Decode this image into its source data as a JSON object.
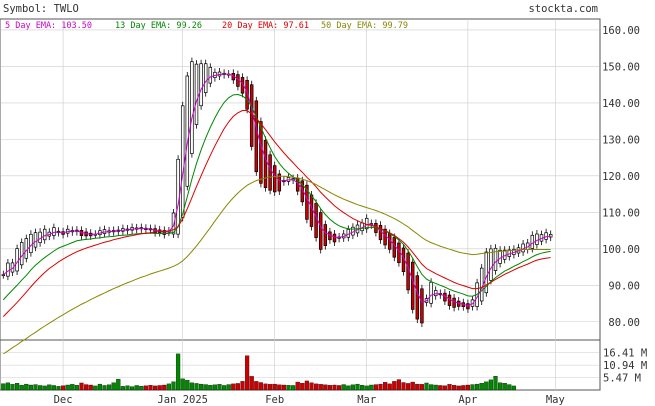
{
  "header": {
    "symbol_label": "Symbol: TWLO",
    "site": "stockta.com"
  },
  "legend": [
    {
      "label": "5 Day EMA:",
      "value": "103.50",
      "color": "#cc00cc"
    },
    {
      "label": "13 Day EMA:",
      "value": "99.26",
      "color": "#008800"
    },
    {
      "label": "20 Day EMA:",
      "value": "97.61",
      "color": "#dd0000"
    },
    {
      "label": "50 Day EMA:",
      "value": "99.79",
      "color": "#888800"
    }
  ],
  "colors": {
    "up_candle": "#ffffff",
    "down_candle": "#cc0000",
    "volume_up": "#008800",
    "volume_down": "#cc0000",
    "grid": "#cccccc",
    "text": "#333333"
  },
  "chart_data": {
    "type": "line",
    "title": "",
    "price_axis": {
      "ticks": [
        80,
        90,
        100,
        110,
        120,
        130,
        140,
        150,
        160
      ],
      "tick_labels": [
        "80.00",
        "90.00",
        "100.00",
        "110.00",
        "120.00",
        "130.00",
        "140.00",
        "150.00",
        "160.00"
      ],
      "ylim": [
        75,
        163
      ]
    },
    "volume_axis": {
      "tick_labels": [
        "16.41 M",
        "10.94 M",
        "5.47 M"
      ],
      "ticks": [
        16.41,
        10.94,
        5.47
      ],
      "ylim": [
        0,
        22
      ]
    },
    "x_labels": [
      "Dec",
      "Jan 2025",
      "Feb",
      "Mar",
      "Apr",
      "May"
    ],
    "x_label_index": [
      13,
      39,
      59,
      79,
      101,
      120
    ],
    "num_days": 130,
    "series": [
      {
        "name": "5 Day EMA",
        "color": "#cc00cc",
        "values": [
          92.9,
          93.9,
          94.6,
          96.3,
          98.0,
          99.5,
          100.9,
          102.0,
          102.8,
          103.6,
          103.9,
          104.5,
          104.6,
          104.4,
          104.7,
          104.8,
          104.9,
          104.5,
          104.2,
          104.0,
          104.0,
          104.3,
          104.6,
          104.7,
          104.8,
          104.9,
          105.1,
          105.2,
          105.4,
          105.5,
          105.6,
          105.5,
          105.4,
          105.1,
          104.9,
          104.6,
          104.7,
          106.3,
          112.0,
          120.5,
          128.9,
          135.9,
          140.5,
          143.7,
          145.9,
          147.1,
          147.5,
          147.8,
          147.9,
          147.9,
          147.4,
          146.5,
          145.3,
          143.1,
          138.4,
          133.0,
          128.3,
          124.7,
          122.0,
          120.0,
          118.7,
          118.6,
          118.9,
          119.0,
          118.0,
          116.4,
          113.8,
          111.4,
          108.8,
          106.0,
          104.4,
          103.8,
          103.2,
          103.1,
          103.4,
          104.0,
          104.6,
          105.2,
          105.8,
          106.6,
          106.7,
          106.0,
          104.9,
          103.7,
          102.5,
          101.0,
          99.5,
          97.7,
          94.9,
          91.3,
          88.0,
          85.4,
          85.7,
          87.3,
          87.7,
          87.6,
          87.0,
          86.2,
          85.5,
          85.1,
          84.8,
          84.4,
          84.9,
          86.7,
          89.2,
          92.3,
          94.7,
          96.4,
          97.4,
          98.1,
          98.6,
          99.0,
          99.4,
          100.0,
          100.5,
          101.5,
          102.3,
          102.8,
          103.3,
          103.5
        ]
      },
      {
        "name": "13 Day EMA",
        "color": "#008800",
        "values": [
          86.0,
          87.4,
          88.7,
          90.0,
          91.4,
          92.7,
          94.2,
          95.5,
          96.6,
          97.6,
          98.5,
          99.4,
          100.2,
          100.7,
          101.2,
          101.7,
          102.2,
          102.4,
          102.6,
          102.7,
          102.9,
          103.0,
          103.2,
          103.3,
          103.4,
          103.6,
          103.7,
          103.8,
          104.0,
          104.1,
          104.2,
          104.2,
          104.3,
          104.2,
          104.2,
          104.2,
          104.2,
          104.5,
          106.0,
          109.6,
          114.3,
          119.1,
          123.4,
          127.1,
          130.4,
          133.3,
          135.9,
          138.2,
          140.1,
          141.4,
          142.2,
          142.3,
          141.9,
          140.9,
          138.9,
          136.2,
          133.3,
          130.4,
          127.7,
          125.3,
          123.4,
          121.9,
          120.7,
          119.7,
          118.7,
          117.6,
          116.2,
          114.6,
          112.9,
          111.0,
          109.4,
          108.1,
          107.1,
          106.3,
          105.8,
          105.5,
          105.4,
          105.5,
          105.6,
          105.8,
          105.9,
          105.7,
          105.4,
          104.9,
          104.2,
          103.4,
          102.4,
          101.2,
          99.5,
          97.4,
          95.1,
          93.0,
          91.7,
          91.0,
          90.5,
          90.0,
          89.5,
          88.9,
          88.4,
          88.0,
          87.6,
          87.1,
          87.0,
          87.5,
          88.5,
          89.7,
          91.0,
          92.1,
          93.0,
          93.9,
          94.5,
          95.2,
          95.8,
          96.5,
          97.1,
          97.8,
          98.4,
          98.8,
          99.1,
          99.3
        ]
      },
      {
        "name": "20 Day EMA",
        "color": "#dd0000",
        "values": [
          81.4,
          82.7,
          84.0,
          85.3,
          86.7,
          88.1,
          89.6,
          91.0,
          92.3,
          93.5,
          94.6,
          95.5,
          96.4,
          97.2,
          97.9,
          98.6,
          99.2,
          99.7,
          100.2,
          100.6,
          101.0,
          101.4,
          101.8,
          102.1,
          102.5,
          102.8,
          103.1,
          103.4,
          103.6,
          103.9,
          104.1,
          104.3,
          104.4,
          104.6,
          104.7,
          104.8,
          104.9,
          105.2,
          106.1,
          108.2,
          111.0,
          114.0,
          117.1,
          120.0,
          122.9,
          125.6,
          128.2,
          130.6,
          132.9,
          134.8,
          136.3,
          137.3,
          137.9,
          137.9,
          137.0,
          135.8,
          134.3,
          132.7,
          131.0,
          129.3,
          127.8,
          126.3,
          124.9,
          123.6,
          122.2,
          121.0,
          119.6,
          118.4,
          117.0,
          115.5,
          114.2,
          113.0,
          111.8,
          110.8,
          109.9,
          109.1,
          108.3,
          107.7,
          107.1,
          106.7,
          106.4,
          106.0,
          105.5,
          105.0,
          104.4,
          103.7,
          102.8,
          101.8,
          100.5,
          99.0,
          97.4,
          95.8,
          94.6,
          93.9,
          93.2,
          92.6,
          92.0,
          91.4,
          90.8,
          90.3,
          89.9,
          89.5,
          89.1,
          89.1,
          89.4,
          90.1,
          90.8,
          91.6,
          92.3,
          93.0,
          93.6,
          94.2,
          94.8,
          95.3,
          95.8,
          96.4,
          96.9,
          97.2,
          97.4,
          97.6
        ]
      },
      {
        "name": "50 Day EMA",
        "color": "#888800",
        "values": [
          71.2,
          72.0,
          72.9,
          73.7,
          74.6,
          75.4,
          76.3,
          77.1,
          78.0,
          78.8,
          79.6,
          80.4,
          81.2,
          81.9,
          82.7,
          83.4,
          84.1,
          84.8,
          85.4,
          86.1,
          86.7,
          87.3,
          87.9,
          88.5,
          89.1,
          89.6,
          90.2,
          90.7,
          91.2,
          91.7,
          92.2,
          92.6,
          93.1,
          93.5,
          93.9,
          94.3,
          94.7,
          95.2,
          95.8,
          96.7,
          97.9,
          99.3,
          100.8,
          102.4,
          104.1,
          105.8,
          107.6,
          109.3,
          111.0,
          112.6,
          114.0,
          115.3,
          116.4,
          117.4,
          118.1,
          118.7,
          119.1,
          119.4,
          119.7,
          119.8,
          119.9,
          119.9,
          119.8,
          119.6,
          119.4,
          119.1,
          118.7,
          118.2,
          117.6,
          116.9,
          116.2,
          115.5,
          114.8,
          114.2,
          113.6,
          113.1,
          112.6,
          112.1,
          111.7,
          111.3,
          110.9,
          110.5,
          110.0,
          109.5,
          108.9,
          108.3,
          107.6,
          106.8,
          106.0,
          105.0,
          104.1,
          103.1,
          102.3,
          101.7,
          101.2,
          100.7,
          100.3,
          99.9,
          99.5,
          99.1,
          98.8,
          98.6,
          98.4,
          98.5,
          98.7,
          98.9,
          99.0,
          99.2,
          99.3,
          99.4,
          99.5,
          99.6,
          99.7,
          99.8,
          99.8,
          99.8,
          99.8,
          99.8,
          99.8,
          99.8
        ]
      },
      {
        "name": "Volume (M)",
        "color": "#008800",
        "values": [
          2.8,
          3.2,
          2.5,
          3.0,
          2.1,
          2.6,
          2.2,
          2.4,
          2.0,
          1.8,
          2.3,
          2.0,
          1.6,
          1.9,
          2.2,
          2.5,
          2.1,
          3.1,
          2.4,
          2.2,
          1.8,
          2.6,
          2.0,
          2.3,
          3.2,
          4.8,
          1.6,
          1.9,
          1.5,
          2.0,
          1.7,
          1.9,
          2.1,
          1.8,
          2.0,
          2.2,
          2.7,
          3.6,
          15.9,
          4.9,
          4.3,
          3.2,
          2.9,
          2.6,
          2.4,
          2.1,
          2.3,
          2.5,
          2.0,
          2.4,
          2.7,
          2.9,
          3.8,
          15.1,
          6.0,
          3.8,
          3.3,
          2.7,
          2.5,
          2.6,
          2.3,
          2.2,
          2.1,
          2.0,
          3.5,
          3.0,
          4.0,
          3.2,
          2.7,
          2.5,
          2.3,
          2.1,
          2.2,
          2.0,
          2.4,
          1.9,
          2.3,
          2.6,
          2.1,
          1.8,
          2.2,
          2.4,
          2.6,
          3.4,
          2.7,
          3.8,
          4.6,
          3.3,
          2.9,
          3.5,
          2.6,
          2.5,
          3.1,
          2.4,
          2.2,
          2.0,
          1.9,
          2.5,
          2.1,
          1.8,
          2.0,
          2.2,
          2.4,
          2.6,
          3.0,
          3.6,
          4.5,
          6.1,
          3.2,
          3.0,
          2.4,
          1.8
        ]
      }
    ]
  }
}
